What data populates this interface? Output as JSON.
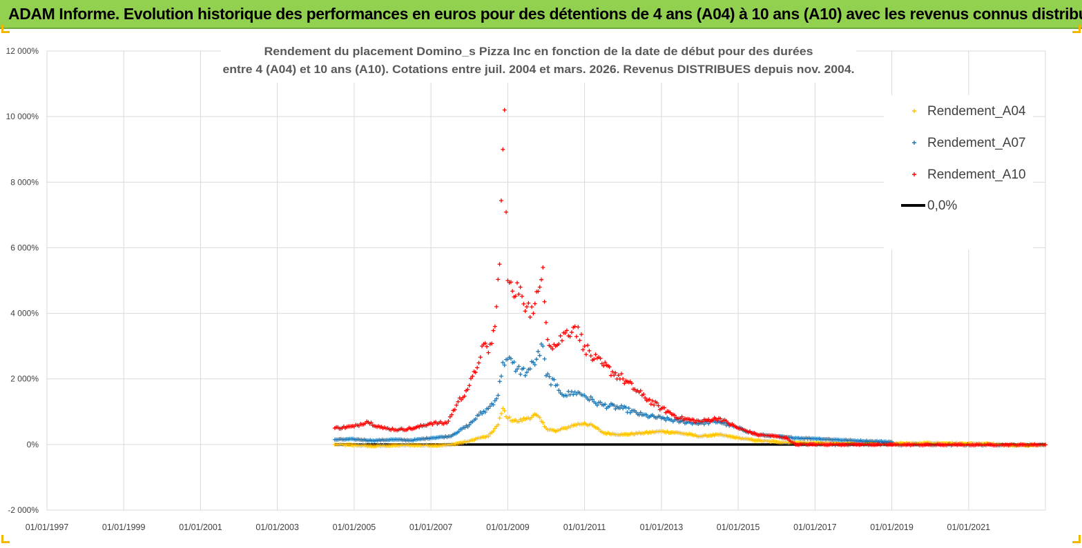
{
  "banner": {
    "title": "ADAM Informe. Evolution historique des performances en euros pour des détentions de 4 ans (A04) à 10 ans (A10) avec les revenus connus distribués"
  },
  "colors": {
    "banner_bg": "#92d050",
    "corner_accent": "#f0b800",
    "A04": "#ffc000",
    "A07": "#1f77b4",
    "A10": "#ff0000",
    "zero_line": "#000000",
    "grid": "#d9d9d9"
  },
  "chart_data": {
    "type": "scatter",
    "title": [
      "Rendement du placement Domino_s Pizza Inc en fonction de la date de début pour des durées",
      "entre 4 (A04) et 10 ans (A10).  Cotations entre juil. 2004 et mars. 2026. Revenus DISTRIBUES depuis nov. 2004."
    ],
    "xlabel": "",
    "ylabel": "",
    "xlim": [
      "1997-01-01",
      "2023-01-01"
    ],
    "ylim": [
      -2000,
      12000
    ],
    "x_ticks": [
      "01/01/1997",
      "01/01/1999",
      "01/01/2001",
      "01/01/2003",
      "01/01/2005",
      "01/01/2007",
      "01/01/2009",
      "01/01/2011",
      "01/01/2013",
      "01/01/2015",
      "01/01/2017",
      "01/01/2019",
      "01/01/2021"
    ],
    "y_ticks": [
      "-2 000%",
      "0%",
      "2 000%",
      "4 000%",
      "6 000%",
      "8 000%",
      "10 000%",
      "12 000%"
    ],
    "grid": "vertical and horizontal",
    "legend_position": "top-right",
    "reference_line": {
      "label": "0,0%",
      "y": 0,
      "x_range": [
        "2004-07-01",
        "2023-01-01"
      ]
    },
    "series": [
      {
        "name": "Rendement_A04",
        "marker": "+",
        "points": [
          [
            "2004-07-01",
            0
          ],
          [
            "2005-01-01",
            -20
          ],
          [
            "2005-07-01",
            -50
          ],
          [
            "2006-01-01",
            -30
          ],
          [
            "2006-07-01",
            -20
          ],
          [
            "2007-01-01",
            -30
          ],
          [
            "2007-07-01",
            -10
          ],
          [
            "2008-01-01",
            100
          ],
          [
            "2008-04-01",
            200
          ],
          [
            "2008-07-01",
            250
          ],
          [
            "2008-10-01",
            600
          ],
          [
            "2008-11-15",
            1100
          ],
          [
            "2009-01-01",
            800
          ],
          [
            "2009-04-01",
            700
          ],
          [
            "2009-07-01",
            800
          ],
          [
            "2009-10-01",
            900
          ],
          [
            "2010-01-01",
            500
          ],
          [
            "2010-04-01",
            400
          ],
          [
            "2010-07-01",
            500
          ],
          [
            "2010-10-01",
            600
          ],
          [
            "2011-01-01",
            650
          ],
          [
            "2011-04-01",
            550
          ],
          [
            "2011-07-01",
            350
          ],
          [
            "2012-01-01",
            300
          ],
          [
            "2012-07-01",
            350
          ],
          [
            "2013-01-01",
            400
          ],
          [
            "2013-07-01",
            350
          ],
          [
            "2014-01-01",
            250
          ],
          [
            "2014-07-01",
            300
          ],
          [
            "2015-01-01",
            200
          ],
          [
            "2015-07-01",
            120
          ],
          [
            "2016-01-01",
            80
          ],
          [
            "2016-07-01",
            60
          ],
          [
            "2017-01-01",
            50
          ],
          [
            "2017-07-01",
            40
          ],
          [
            "2018-01-01",
            60
          ],
          [
            "2018-07-01",
            50
          ],
          [
            "2019-01-01",
            40
          ],
          [
            "2019-07-01",
            30
          ],
          [
            "2020-01-01",
            50
          ],
          [
            "2020-07-01",
            40
          ],
          [
            "2021-01-01",
            30
          ],
          [
            "2021-07-01",
            30
          ],
          [
            "2022-01-01",
            -20
          ],
          [
            "2022-07-01",
            -30
          ],
          [
            "2023-01-01",
            -10
          ]
        ]
      },
      {
        "name": "Rendement_A07",
        "marker": "+",
        "points": [
          [
            "2004-07-01",
            150
          ],
          [
            "2005-01-01",
            160
          ],
          [
            "2005-07-01",
            120
          ],
          [
            "2006-01-01",
            150
          ],
          [
            "2006-07-01",
            130
          ],
          [
            "2007-01-01",
            200
          ],
          [
            "2007-07-01",
            250
          ],
          [
            "2008-01-01",
            600
          ],
          [
            "2008-04-01",
            900
          ],
          [
            "2008-07-01",
            1100
          ],
          [
            "2008-10-01",
            1500
          ],
          [
            "2008-11-15",
            2500
          ],
          [
            "2009-01-01",
            2600
          ],
          [
            "2009-04-01",
            2300
          ],
          [
            "2009-07-01",
            2200
          ],
          [
            "2009-10-01",
            2600
          ],
          [
            "2009-12-01",
            3000
          ],
          [
            "2010-01-01",
            2100
          ],
          [
            "2010-04-01",
            1800
          ],
          [
            "2010-07-01",
            1500
          ],
          [
            "2010-10-01",
            1600
          ],
          [
            "2011-01-01",
            1500
          ],
          [
            "2011-04-01",
            1300
          ],
          [
            "2011-07-01",
            1200
          ],
          [
            "2012-01-01",
            1100
          ],
          [
            "2012-07-01",
            900
          ],
          [
            "2013-01-01",
            800
          ],
          [
            "2013-07-01",
            700
          ],
          [
            "2014-01-01",
            650
          ],
          [
            "2014-07-01",
            700
          ],
          [
            "2015-01-01",
            500
          ],
          [
            "2015-07-01",
            300
          ],
          [
            "2016-01-01",
            250
          ],
          [
            "2016-07-01",
            200
          ],
          [
            "2017-01-01",
            180
          ],
          [
            "2017-07-01",
            150
          ],
          [
            "2018-01-01",
            120
          ],
          [
            "2018-07-01",
            100
          ],
          [
            "2019-01-01",
            80
          ]
        ]
      },
      {
        "name": "Rendement_A10",
        "marker": "+",
        "points": [
          [
            "2004-07-01",
            500
          ],
          [
            "2005-01-01",
            550
          ],
          [
            "2005-05-01",
            700
          ],
          [
            "2005-10-01",
            500
          ],
          [
            "2006-03-01",
            450
          ],
          [
            "2006-08-01",
            500
          ],
          [
            "2007-01-01",
            650
          ],
          [
            "2007-06-01",
            650
          ],
          [
            "2007-09-01",
            1200
          ],
          [
            "2008-01-01",
            1800
          ],
          [
            "2008-03-01",
            2200
          ],
          [
            "2008-05-01",
            3000
          ],
          [
            "2008-07-01",
            2800
          ],
          [
            "2008-09-01",
            3600
          ],
          [
            "2008-10-15",
            5500
          ],
          [
            "2008-11-15",
            9000
          ],
          [
            "2008-12-01",
            10200
          ],
          [
            "2009-01-01",
            5000
          ],
          [
            "2009-03-01",
            4500
          ],
          [
            "2009-05-01",
            4800
          ],
          [
            "2009-07-01",
            4200
          ],
          [
            "2009-09-01",
            4000
          ],
          [
            "2009-11-01",
            4800
          ],
          [
            "2009-12-01",
            5400
          ],
          [
            "2010-01-15",
            3200
          ],
          [
            "2010-04-01",
            3000
          ],
          [
            "2010-07-01",
            3400
          ],
          [
            "2010-10-01",
            3600
          ],
          [
            "2011-01-01",
            3000
          ],
          [
            "2011-04-01",
            2600
          ],
          [
            "2011-07-01",
            2400
          ],
          [
            "2012-01-01",
            2000
          ],
          [
            "2012-07-01",
            1500
          ],
          [
            "2013-01-01",
            1100
          ],
          [
            "2013-07-01",
            800
          ],
          [
            "2014-01-01",
            700
          ],
          [
            "2014-07-01",
            800
          ],
          [
            "2015-01-01",
            500
          ],
          [
            "2015-07-01",
            300
          ],
          [
            "2016-01-01",
            250
          ],
          [
            "2016-04-01",
            200
          ],
          [
            "2016-07-01",
            0
          ],
          [
            "2018-01-01",
            0
          ],
          [
            "2020-01-01",
            -10
          ],
          [
            "2022-01-01",
            -10
          ],
          [
            "2023-01-01",
            -5
          ]
        ]
      }
    ]
  }
}
